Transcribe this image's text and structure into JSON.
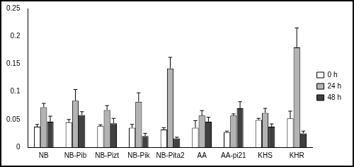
{
  "chart_data": {
    "type": "bar",
    "categories": [
      "NB",
      "NB-Pib",
      "NB-Pizt",
      "NB-Pik",
      "NB-Pita2",
      "AA",
      "AA-pi21",
      "KHS",
      "KHR"
    ],
    "series": [
      {
        "name": "0 h",
        "color": "#ffffff",
        "values": [
          0.037,
          0.045,
          0.038,
          0.035,
          0.032,
          0.035,
          0.027,
          0.049,
          0.052
        ],
        "errors": [
          0.004,
          0.005,
          0.002,
          0.006,
          0.003,
          0.013,
          0.002,
          0.003,
          0.013
        ]
      },
      {
        "name": "24 h",
        "color": "#b3b3b3",
        "values": [
          0.072,
          0.084,
          0.067,
          0.082,
          0.142,
          0.057,
          0.057,
          0.062,
          0.18
        ],
        "errors": [
          0.007,
          0.02,
          0.008,
          0.016,
          0.02,
          0.009,
          0.003,
          0.008,
          0.035
        ]
      },
      {
        "name": "48 h",
        "color": "#404040",
        "values": [
          0.046,
          0.058,
          0.043,
          0.02,
          0.016,
          0.046,
          0.07,
          0.037,
          0.025
        ],
        "errors": [
          0.01,
          0.006,
          0.009,
          0.005,
          0.002,
          0.008,
          0.012,
          0.005,
          0.004
        ]
      }
    ],
    "ylim": [
      0,
      0.25
    ],
    "yticks": [
      0,
      0.05,
      0.1,
      0.15,
      0.2,
      0.25
    ],
    "grid": false,
    "legend": "right"
  }
}
